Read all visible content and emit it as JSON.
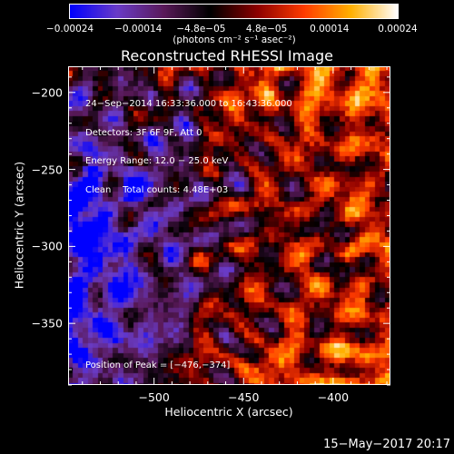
{
  "chart_data": {
    "type": "heatmap",
    "title": "Reconstructed RHESSI Image",
    "xlabel": "Heliocentric X (arcsec)",
    "ylabel": "Heliocentric Y (arcsec)",
    "xlim": [
      -548,
      -368
    ],
    "ylim": [
      -390,
      -183
    ],
    "x_ticks": [
      -500,
      -450,
      -400
    ],
    "y_ticks": [
      -200,
      -250,
      -300,
      -350
    ],
    "x_tick_labels": [
      "−500",
      "−450",
      "−400"
    ],
    "y_tick_labels": [
      "−200",
      "−250",
      "−300",
      "−350"
    ],
    "colorbar": {
      "min": -0.00024,
      "max": 0.00024,
      "tick_values": [
        -0.00024,
        -0.00014,
        -4.8e-05,
        4.8e-05,
        0.00014,
        0.00024
      ],
      "tick_labels": [
        "−0.00024",
        "−0.00014",
        "−4.8e−05",
        "4.8e−05",
        "0.00014",
        "0.00024"
      ],
      "units_label": "(photons cm⁻² s⁻¹ asec⁻²)",
      "colormap": [
        "#0000ff",
        "#6a3cc8",
        "#5a1a5a",
        "#000000",
        "#8c0000",
        "#ff3c00",
        "#ffb000",
        "#ffffff"
      ]
    },
    "annotations": [
      "24−Sep−2014 16:33:36.000 to 16:43:36.000",
      "Detectors: 3F 6F 9F, Att 0",
      "Energy Range: 12.0 − 25.0 keV",
      "Clean    Total counts: 4.48E+03"
    ],
    "peak_label": "Position of Peak = [−476,−374]",
    "peak": [
      -476,
      -374
    ]
  },
  "footer": {
    "date": "15−May−2017 20:17"
  }
}
